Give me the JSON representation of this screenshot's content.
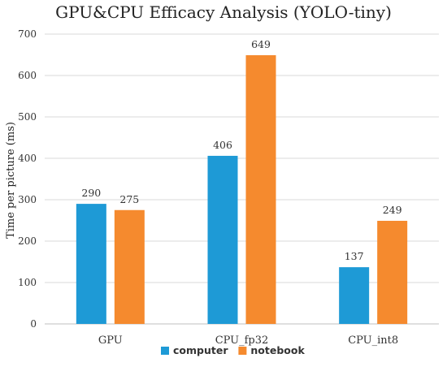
{
  "chart_data": {
    "type": "bar",
    "title": "GPU&CPU Efficacy Analysis (YOLO-tiny)",
    "xlabel": "",
    "ylabel": "Time per picture (ms)",
    "ylim": [
      0,
      700
    ],
    "yticks": [
      "0",
      "100",
      "200",
      "300",
      "400",
      "500",
      "600",
      "700"
    ],
    "grid": true,
    "legend_position": "bottom",
    "categories": [
      "GPU",
      "CPU_fp32",
      "CPU_int8"
    ],
    "series": [
      {
        "name": "computer",
        "color": "#1e9ad6",
        "values": [
          290,
          406,
          137
        ]
      },
      {
        "name": "notebook",
        "color": "#f58a2e",
        "values": [
          275,
          649,
          249
        ]
      }
    ]
  }
}
